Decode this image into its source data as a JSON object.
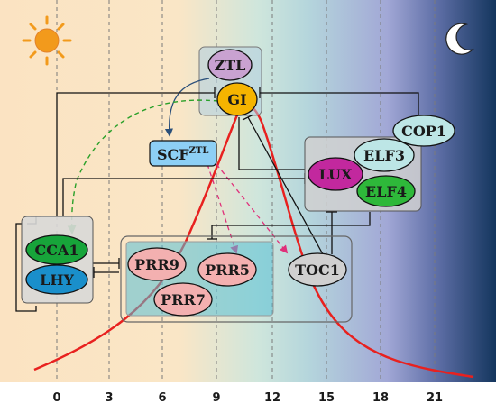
{
  "time_axis": {
    "ticks": [
      "0",
      "3",
      "6",
      "9",
      "12",
      "15",
      "18",
      "21"
    ]
  },
  "nodes": {
    "ztl": "ZTL",
    "gi": "GI",
    "scf": "SCF",
    "scf_superscript": "ZTL",
    "cop1": "COP1",
    "elf3": "ELF3",
    "lux": "LUX",
    "elf4": "ELF4",
    "cca1": "CCA1",
    "lhy": "LHY",
    "prr9": "PRR9",
    "prr5": "PRR5",
    "prr7": "PRR7",
    "toc1": "TOC1"
  },
  "colors": {
    "day_background": "#fbe3c2",
    "night_background": "#14365e",
    "expression_curve": "#e8211f",
    "gi_fill": "#f5b400",
    "ztl_fill": "#c9a2d1",
    "scf_fill": "#8dcff5",
    "cop1_fill": "#bde6e6",
    "elf3_fill": "#bde6e6",
    "lux_fill": "#c2289e",
    "elf4_fill": "#2eb83a",
    "cca1_fill": "#17a43a",
    "lhy_fill": "#1a8fcb",
    "prr_fill": "#f3b0b0",
    "toc1_fill": "#d0d0d0",
    "sun": "#f29a1c",
    "moon": "#ffffff"
  },
  "icons": [
    "sun-icon",
    "moon-icon"
  ]
}
